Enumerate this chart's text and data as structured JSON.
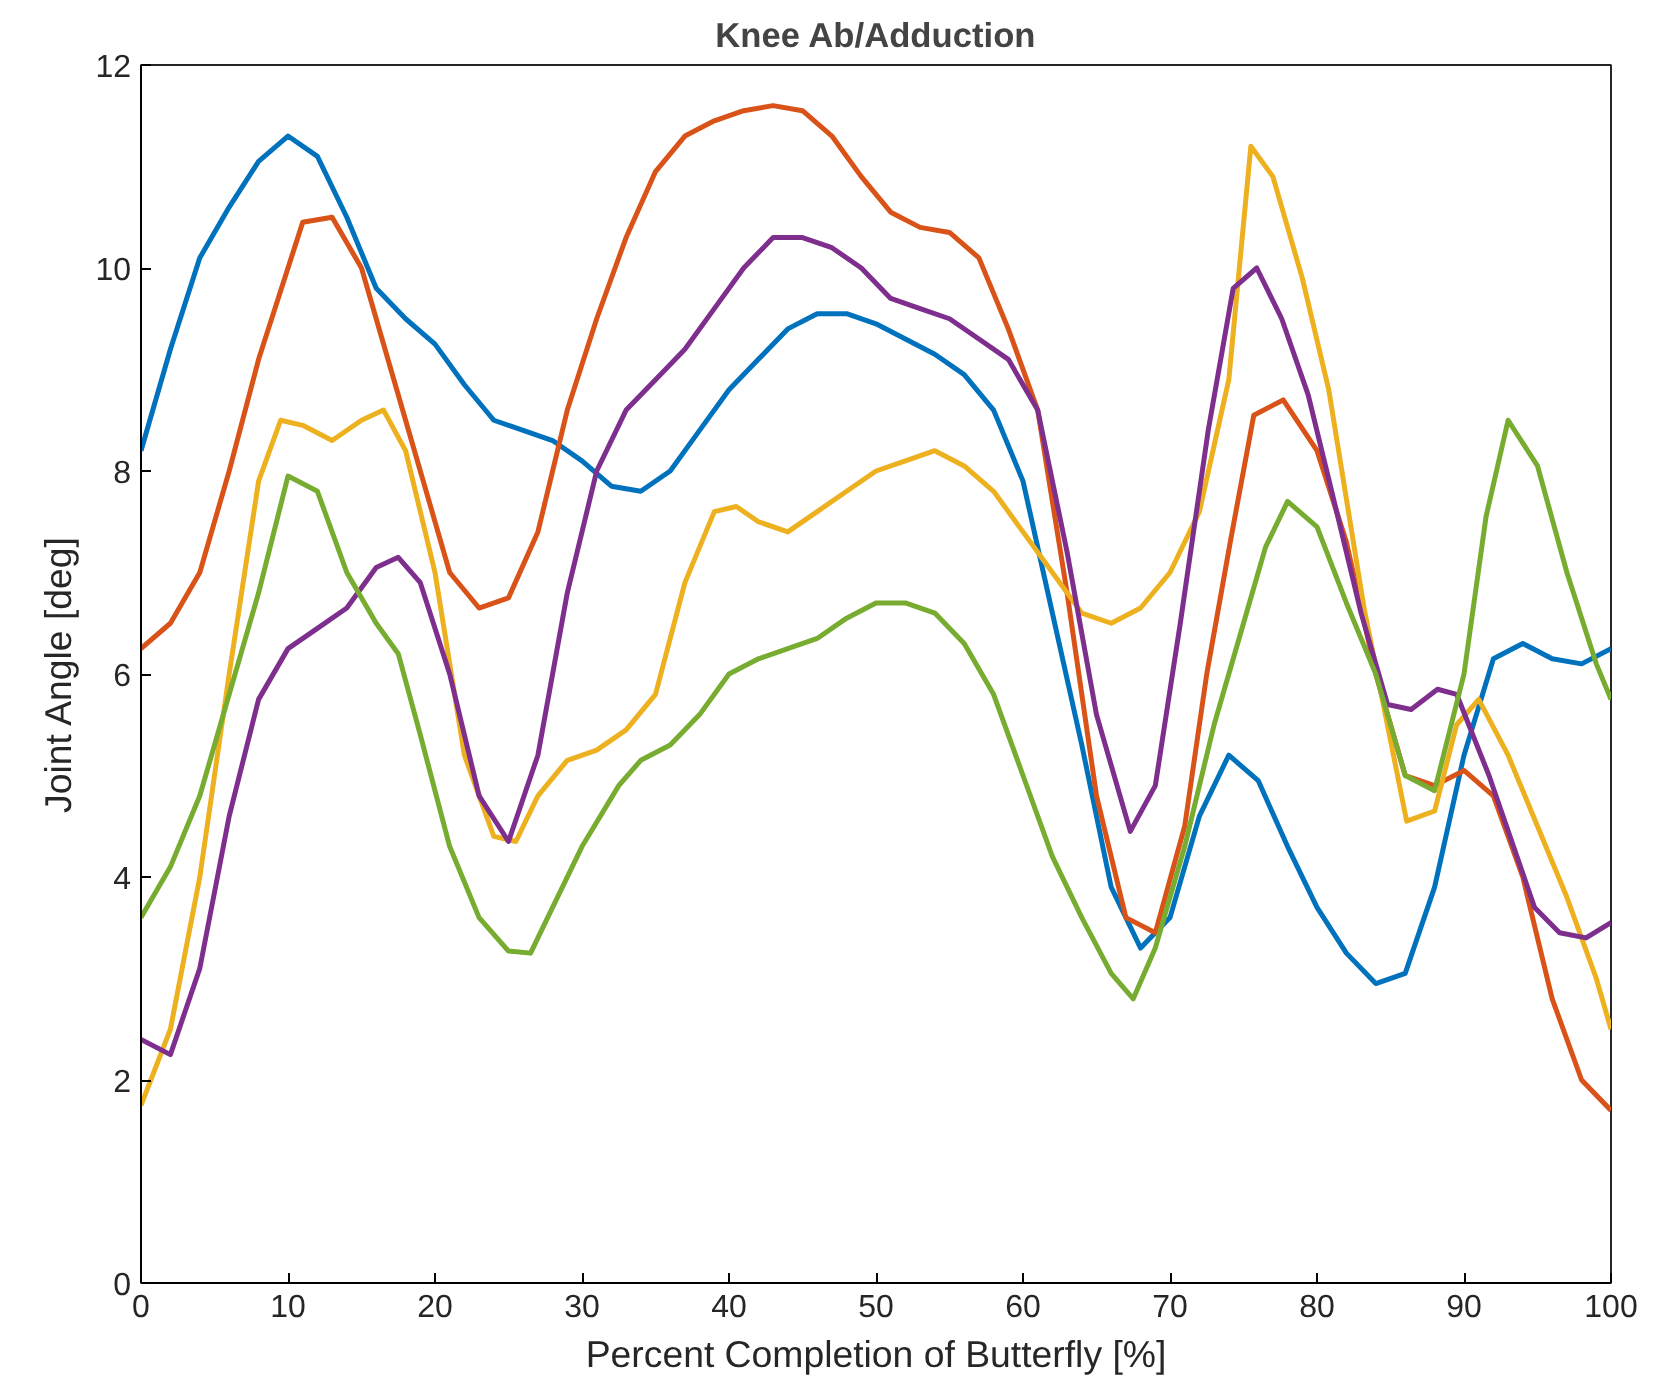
{
  "chart_data": {
    "type": "line",
    "title": "Knee Ab/Adduction",
    "xlabel": "Percent Completion of Butterfly [%]",
    "ylabel": "Joint Angle [deg]",
    "xlim": [
      0,
      100
    ],
    "ylim": [
      0,
      12
    ],
    "xticks": [
      0,
      10,
      20,
      30,
      40,
      50,
      60,
      70,
      80,
      90,
      100
    ],
    "yticks": [
      0,
      2,
      4,
      6,
      8,
      10,
      12
    ],
    "grid": false,
    "line_style": "solid",
    "series": [
      {
        "color": "#0072bd",
        "x": [
          0,
          2,
          4,
          6,
          8,
          10,
          12,
          14,
          16,
          18,
          20,
          22,
          24,
          26,
          28,
          30,
          32,
          34,
          36,
          38,
          40,
          42,
          44,
          46,
          48,
          50,
          52,
          54,
          56,
          58,
          60,
          62,
          64,
          66,
          68,
          70,
          72,
          74,
          76,
          78,
          80,
          82,
          84,
          86,
          88,
          90,
          92,
          94,
          96,
          98,
          100
        ],
        "values": [
          8.2,
          9.2,
          10.1,
          10.6,
          11.05,
          11.3,
          11.1,
          10.5,
          9.8,
          9.5,
          9.25,
          8.85,
          8.5,
          8.4,
          8.3,
          8.1,
          7.85,
          7.8,
          8.0,
          8.4,
          8.8,
          9.1,
          9.4,
          9.55,
          9.55,
          9.45,
          9.3,
          9.15,
          8.95,
          8.6,
          7.9,
          6.6,
          5.3,
          3.9,
          3.3,
          3.6,
          4.6,
          5.2,
          4.95,
          4.3,
          3.7,
          3.25,
          2.95,
          3.05,
          3.9,
          5.2,
          6.15,
          6.3,
          6.15,
          6.1,
          6.25
        ]
      },
      {
        "color": "#d95319",
        "x": [
          0,
          2,
          4,
          6,
          8,
          10,
          11,
          13,
          15,
          17,
          19,
          21,
          23,
          25,
          27,
          29,
          31,
          33,
          35,
          37,
          39,
          41,
          43,
          45,
          47,
          49,
          51,
          53,
          55,
          57,
          59,
          61,
          63,
          65,
          67,
          69,
          71,
          72.5,
          74.1,
          75.7,
          77.7,
          80,
          82,
          84,
          86,
          88,
          90,
          92,
          94,
          96,
          98,
          100
        ],
        "values": [
          6.25,
          6.5,
          7.0,
          8.0,
          9.1,
          10.0,
          10.45,
          10.5,
          10.0,
          9.0,
          8.0,
          7.0,
          6.65,
          6.75,
          7.4,
          8.6,
          9.5,
          10.3,
          10.95,
          11.3,
          11.45,
          11.55,
          11.6,
          11.55,
          11.3,
          10.9,
          10.55,
          10.4,
          10.35,
          10.1,
          9.4,
          8.6,
          6.8,
          4.8,
          3.6,
          3.45,
          4.5,
          6.0,
          7.3,
          8.55,
          8.7,
          8.2,
          7.3,
          6.0,
          5.0,
          4.9,
          5.05,
          4.8,
          4.0,
          2.8,
          2.0,
          1.7
        ]
      },
      {
        "color": "#edb120",
        "x": [
          0,
          2,
          4,
          6,
          8,
          9.5,
          11,
          13,
          15,
          16.5,
          18,
          20,
          22,
          24,
          25.5,
          27,
          29,
          31,
          33,
          35,
          37,
          39,
          40.5,
          42,
          44,
          46,
          48,
          50,
          52,
          54,
          56,
          58,
          60,
          62,
          64,
          66,
          68,
          70,
          72,
          74,
          75.5,
          77,
          79,
          80.8,
          83.2,
          86.1,
          88,
          89.5,
          91,
          93,
          95,
          97,
          99,
          100
        ],
        "values": [
          1.75,
          2.5,
          4.0,
          6.0,
          7.9,
          8.5,
          8.45,
          8.3,
          8.5,
          8.6,
          8.2,
          7.0,
          5.2,
          4.4,
          4.35,
          4.8,
          5.15,
          5.25,
          5.45,
          5.8,
          6.9,
          7.6,
          7.65,
          7.5,
          7.4,
          7.6,
          7.8,
          8.0,
          8.1,
          8.2,
          8.05,
          7.8,
          7.4,
          7.0,
          6.6,
          6.5,
          6.65,
          7.0,
          7.6,
          8.9,
          11.2,
          10.9,
          9.9,
          8.8,
          6.65,
          4.55,
          4.65,
          5.5,
          5.75,
          5.2,
          4.5,
          3.8,
          3.0,
          2.5
        ]
      },
      {
        "color": "#7e2f8e",
        "x": [
          0,
          2,
          4,
          6,
          8,
          10,
          12,
          14,
          16,
          17.5,
          19,
          21,
          23,
          25,
          27,
          29,
          31,
          33,
          35,
          37,
          39,
          41,
          43,
          45,
          47,
          49,
          51,
          53,
          55,
          57,
          59,
          61,
          63,
          65,
          67.3,
          69,
          70.7,
          72.6,
          74.3,
          75.9,
          77.6,
          79.4,
          81,
          83,
          84.8,
          86.4,
          88.2,
          89.5,
          91.7,
          94.8,
          96.5,
          98.3,
          100
        ],
        "values": [
          2.4,
          2.25,
          3.1,
          4.6,
          5.75,
          6.25,
          6.45,
          6.65,
          7.05,
          7.15,
          6.9,
          6.0,
          4.8,
          4.35,
          5.2,
          6.8,
          8.0,
          8.6,
          8.9,
          9.2,
          9.6,
          10.0,
          10.3,
          10.3,
          10.2,
          10.0,
          9.7,
          9.6,
          9.5,
          9.3,
          9.1,
          8.6,
          7.2,
          5.6,
          4.45,
          4.9,
          6.5,
          8.4,
          9.8,
          10.0,
          9.5,
          8.75,
          7.8,
          6.6,
          5.7,
          5.65,
          5.85,
          5.8,
          5.0,
          3.7,
          3.45,
          3.4,
          3.55
        ]
      },
      {
        "color": "#77ac30",
        "x": [
          0,
          2,
          4,
          6,
          8,
          10,
          12,
          14,
          16,
          17.5,
          19,
          21,
          23,
          25,
          26.5,
          28,
          30,
          32.5,
          34,
          36,
          38,
          40,
          42,
          44,
          46,
          48,
          50,
          52,
          54,
          56,
          58,
          60,
          62,
          64,
          66,
          67.5,
          69,
          71,
          73,
          75,
          76.5,
          78,
          80,
          82,
          84,
          86,
          88,
          90,
          91.5,
          93,
          95,
          97,
          99,
          100
        ],
        "values": [
          3.6,
          4.1,
          4.8,
          5.8,
          6.8,
          7.95,
          7.8,
          7.0,
          6.5,
          6.2,
          5.4,
          4.3,
          3.6,
          3.27,
          3.25,
          3.7,
          4.3,
          4.9,
          5.15,
          5.3,
          5.6,
          6.0,
          6.15,
          6.25,
          6.35,
          6.55,
          6.7,
          6.7,
          6.6,
          6.3,
          5.8,
          5.0,
          4.2,
          3.6,
          3.05,
          2.8,
          3.3,
          4.3,
          5.5,
          6.5,
          7.25,
          7.7,
          7.45,
          6.7,
          6.0,
          5.0,
          4.85,
          6.0,
          7.55,
          8.5,
          8.05,
          7.0,
          6.1,
          5.75
        ]
      }
    ]
  }
}
